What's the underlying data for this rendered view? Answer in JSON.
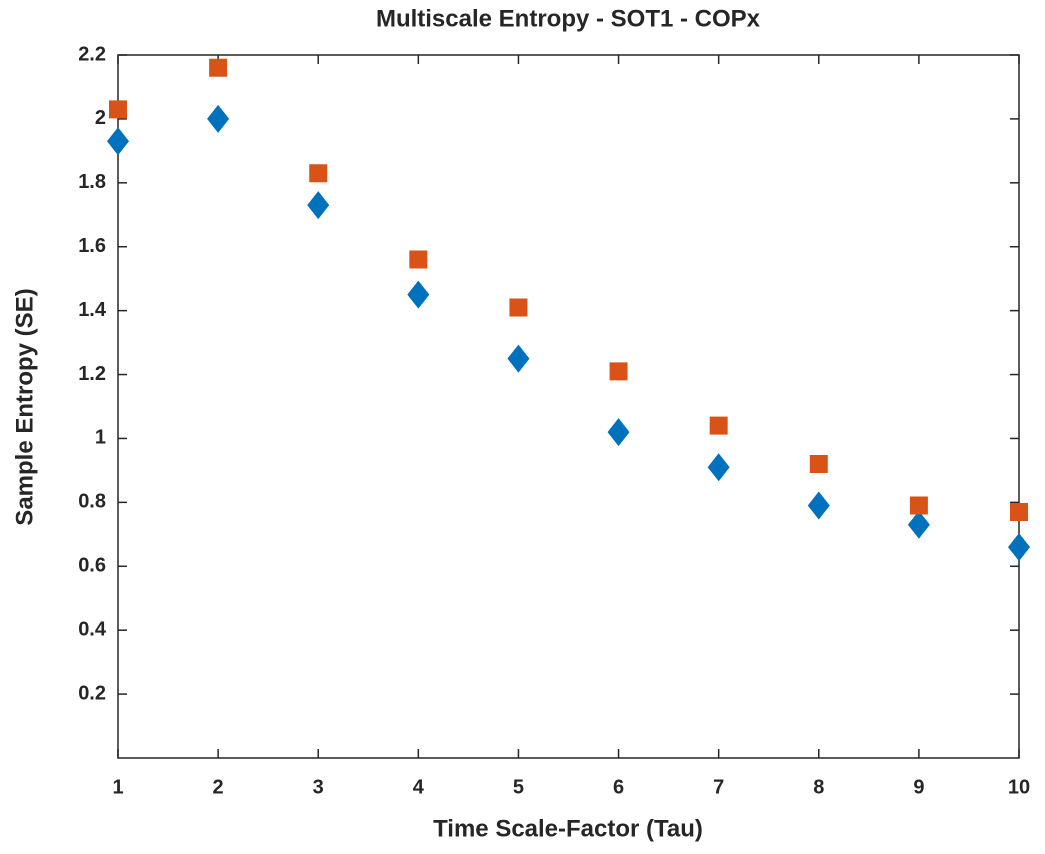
{
  "chart_data": {
    "type": "scatter",
    "title": "Multiscale Entropy - SOT1 - COPx",
    "xlabel": "Time Scale-Factor (Tau)",
    "ylabel": "Sample Entropy (SE)",
    "x": [
      1,
      2,
      3,
      4,
      5,
      6,
      7,
      8,
      9,
      10
    ],
    "series": [
      {
        "color": "#0072bd",
        "marker": "diamond",
        "values": [
          1.93,
          2.0,
          1.73,
          1.45,
          1.25,
          1.02,
          0.91,
          0.79,
          0.73,
          0.66
        ]
      },
      {
        "color": "#d95319",
        "marker": "square",
        "values": [
          2.03,
          2.16,
          1.83,
          1.56,
          1.41,
          1.21,
          1.04,
          0.92,
          0.79,
          0.77
        ]
      }
    ],
    "xlim": [
      1,
      10
    ],
    "xticks": [
      1,
      2,
      3,
      4,
      5,
      6,
      7,
      8,
      9,
      10
    ],
    "ylim": [
      0,
      2.2
    ],
    "yticks": [
      0.2,
      0.4,
      0.6,
      0.8,
      1,
      1.2,
      1.4,
      1.6,
      1.8,
      2,
      2.2
    ],
    "grid": false
  }
}
